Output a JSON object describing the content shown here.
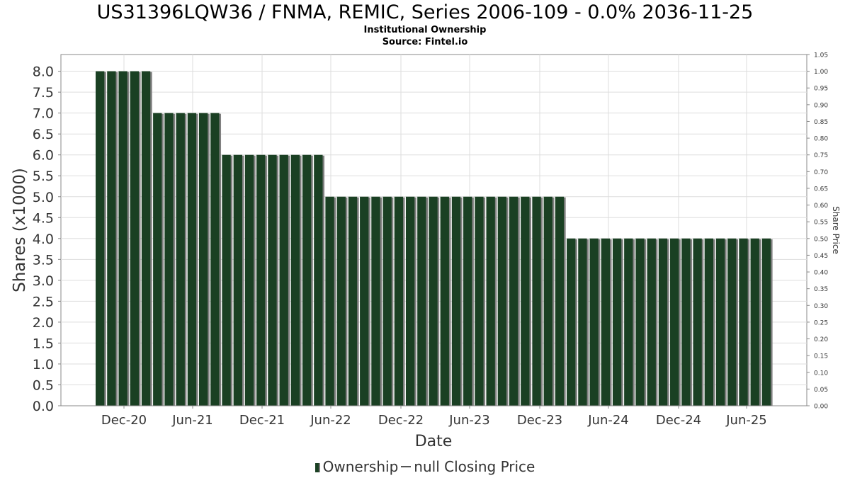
{
  "header": {
    "title": "US31396LQW36 / FNMA, REMIC, Series 2006-109 - 0.0% 2036-11-25",
    "subtitle": "Institutional Ownership",
    "source": "Source: Fintel.io"
  },
  "legend": {
    "ownership_label": "Ownership",
    "price_label": "null Closing Price"
  },
  "colors": {
    "bar": "#1a4023",
    "bar_shadow": "#808080",
    "grid": "#dddddd",
    "axis": "#888888"
  },
  "chart_data": {
    "type": "bar",
    "xlabel": "Date",
    "ylabel": "Shares (x1000)",
    "y2label": "Share Price",
    "ylim": [
      0,
      8.4
    ],
    "y2lim": [
      0,
      1.05
    ],
    "yticks": [
      "0.0",
      "0.5",
      "1.0",
      "1.5",
      "2.0",
      "2.5",
      "3.0",
      "3.5",
      "4.0",
      "4.5",
      "5.0",
      "5.5",
      "6.0",
      "6.5",
      "7.0",
      "7.5",
      "8.0"
    ],
    "y2ticks": [
      "0.00",
      "0.05",
      "0.10",
      "0.15",
      "0.20",
      "0.25",
      "0.30",
      "0.35",
      "0.40",
      "0.45",
      "0.50",
      "0.55",
      "0.60",
      "0.65",
      "0.70",
      "0.75",
      "0.80",
      "0.85",
      "0.90",
      "0.95",
      "1.00",
      "1.05"
    ],
    "xticks": [
      "Dec-20",
      "Jun-21",
      "Dec-21",
      "Jun-22",
      "Dec-22",
      "Jun-23",
      "Dec-23",
      "Jun-24",
      "Dec-24",
      "Jun-25"
    ],
    "grid": true,
    "legend_position": "bottom",
    "series": [
      {
        "name": "Ownership",
        "values": [
          8,
          8,
          8,
          8,
          8,
          7,
          7,
          7,
          7,
          7,
          7,
          6,
          6,
          6,
          6,
          6,
          6,
          6,
          6,
          6,
          5,
          5,
          5,
          5,
          5,
          5,
          5,
          5,
          5,
          5,
          5,
          5,
          5,
          5,
          5,
          5,
          5,
          5,
          5,
          5,
          5,
          4,
          4,
          4,
          4,
          4,
          4,
          4,
          4,
          4,
          4,
          4,
          4,
          4,
          4,
          4,
          4,
          4,
          4
        ]
      }
    ]
  }
}
